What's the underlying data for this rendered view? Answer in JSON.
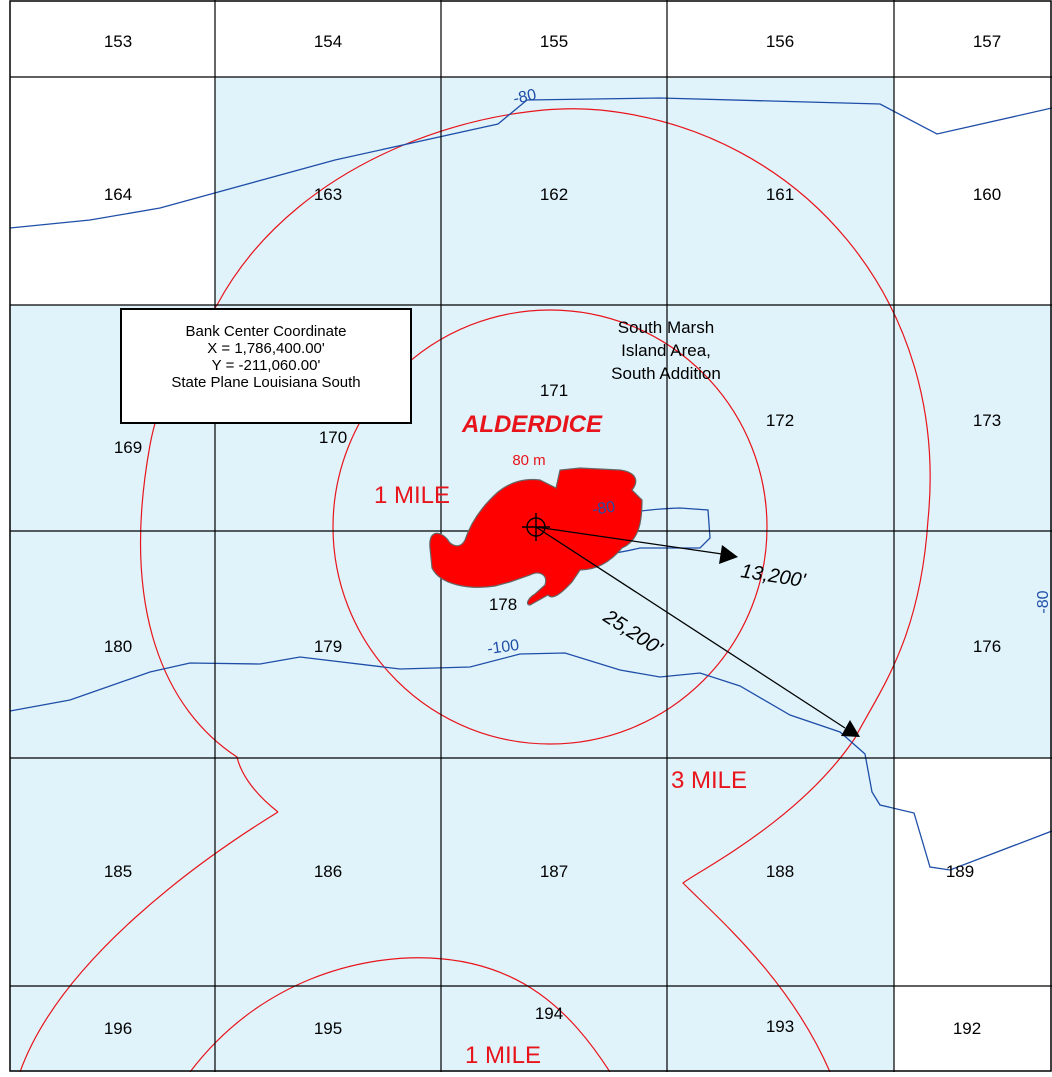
{
  "blocks": [
    {
      "id": "153"
    },
    {
      "id": "154"
    },
    {
      "id": "155"
    },
    {
      "id": "156"
    },
    {
      "id": "157"
    },
    {
      "id": "164"
    },
    {
      "id": "163"
    },
    {
      "id": "162"
    },
    {
      "id": "161"
    },
    {
      "id": "160"
    },
    {
      "id": "169"
    },
    {
      "id": "170"
    },
    {
      "id": "171"
    },
    {
      "id": "172"
    },
    {
      "id": "173"
    },
    {
      "id": "180"
    },
    {
      "id": "179"
    },
    {
      "id": "178"
    },
    {
      "id": "176"
    },
    {
      "id": "185"
    },
    {
      "id": "186"
    },
    {
      "id": "187"
    },
    {
      "id": "188"
    },
    {
      "id": "189"
    },
    {
      "id": "196"
    },
    {
      "id": "195"
    },
    {
      "id": "194"
    },
    {
      "id": "193"
    },
    {
      "id": "192"
    }
  ],
  "info_box": {
    "line1": "Bank Center Coordinate",
    "line2": "X = 1,786,400.00'",
    "line3": "Y = -211,060.00'",
    "line4": "State Plane Louisiana South"
  },
  "area_label": {
    "line1": "South Marsh",
    "line2": "Island Area,",
    "line3": "South Addition"
  },
  "bank": {
    "name": "ALDERDICE",
    "depth": "80 m",
    "fill_color": "#ff0000"
  },
  "rings": {
    "one_mile": "1 MILE",
    "three_mile": "3 MILE",
    "one_mile_lower": "1 MILE",
    "color": "#e8141b"
  },
  "distances": {
    "inner": "13,200'",
    "outer": "25,200'"
  },
  "contours": {
    "top": "-80",
    "center": "-80",
    "right": "-80",
    "bottom": "-100",
    "color": "#1f4ea8"
  },
  "colors": {
    "lease_fill": "#e0f3fb"
  }
}
